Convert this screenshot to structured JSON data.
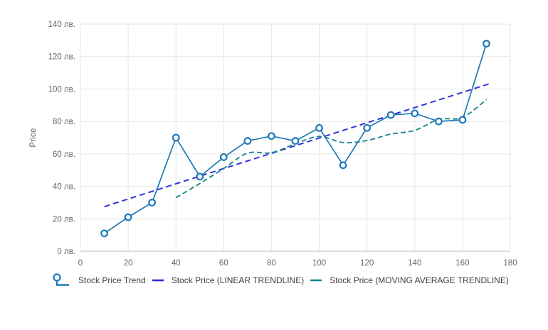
{
  "window": {
    "background": "#ffffff"
  },
  "chart_data": {
    "type": "line",
    "title": "",
    "xlabel": "",
    "ylabel": "Price",
    "xlim": [
      0,
      180
    ],
    "ylim": [
      0,
      140
    ],
    "x_ticks": [
      0,
      20,
      40,
      60,
      80,
      100,
      120,
      140,
      160,
      180
    ],
    "y_ticks": [
      0,
      20,
      40,
      60,
      80,
      100,
      120,
      140
    ],
    "y_tick_suffix": " лв.",
    "grid": true,
    "legend_position": "bottom",
    "x": [
      10,
      20,
      30,
      40,
      50,
      60,
      70,
      80,
      90,
      100,
      110,
      120,
      130,
      140,
      150,
      160,
      170
    ],
    "series": [
      {
        "name": "Stock Price Trend",
        "color": "#1E79B8",
        "marker": "circle",
        "line": "solid",
        "values": [
          11,
          21,
          30,
          70,
          46,
          58,
          68,
          71,
          68,
          76,
          53,
          76,
          84,
          85,
          80,
          81,
          128
        ]
      }
    ],
    "trendlines": [
      {
        "name": "Stock Price (LINEAR TRENDLINE)",
        "kind": "linear",
        "line": "dashed",
        "color": "#3232DC",
        "points": [
          [
            10,
            27.5
          ],
          [
            172,
            103.6
          ]
        ]
      },
      {
        "name": "Stock Price (MOVING AVERAGE TRENDLINE)",
        "kind": "moving_average",
        "period": 4,
        "line": "dashed",
        "color": "#14838A",
        "x": [
          40,
          50,
          60,
          70,
          80,
          90,
          100,
          110,
          120,
          130,
          140,
          150,
          160,
          170
        ],
        "values": [
          33,
          41.75,
          51,
          60.5,
          60.75,
          66.25,
          70.75,
          67,
          68.25,
          72.25,
          74.5,
          81.25,
          82.5,
          93.5
        ]
      }
    ],
    "legend": [
      {
        "label": "Stock Price Trend",
        "swatch": "marker-line",
        "color": "#1E79B8"
      },
      {
        "label": "Stock Price (LINEAR TRENDLINE)",
        "swatch": "line",
        "color": "#2B2BD8"
      },
      {
        "label": "Stock Price (MOVING AVERAGE TRENDLINE)",
        "swatch": "line",
        "color": "#14838A"
      }
    ]
  },
  "colors": {
    "grid": "#E6E6E6",
    "axis": "#C9C9C9",
    "tick_label": "#666666",
    "axis_title": "#555555",
    "legend_text": "#3F3F3F",
    "marker_fill": "#FFFFFF"
  }
}
